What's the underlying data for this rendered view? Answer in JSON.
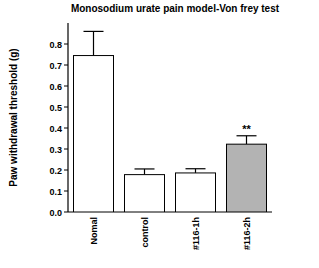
{
  "chart_data": {
    "type": "bar",
    "title": "Monosodium urate pain model-Von frey test",
    "y_label": "Paw withdrawal threshold (g)",
    "categories": [
      "Nomal",
      "control",
      "#116-1h",
      "#116-2h"
    ],
    "values": [
      0.745,
      0.178,
      0.186,
      0.323
    ],
    "errors": [
      0.115,
      0.027,
      0.02,
      0.04
    ],
    "colors": [
      "#ffffff",
      "#ffffff",
      "#ffffff",
      "#b3b3b3"
    ],
    "ylim": [
      0,
      0.9
    ],
    "yticks": [
      {
        "value": 0,
        "label": "0.0"
      },
      0.1,
      0.2,
      0.3,
      0.4,
      0.5,
      0.6,
      0.7,
      0.8
    ],
    "annotations": [
      {
        "text": "**",
        "x": "#116-2h"
      }
    ],
    "grid": false
  }
}
